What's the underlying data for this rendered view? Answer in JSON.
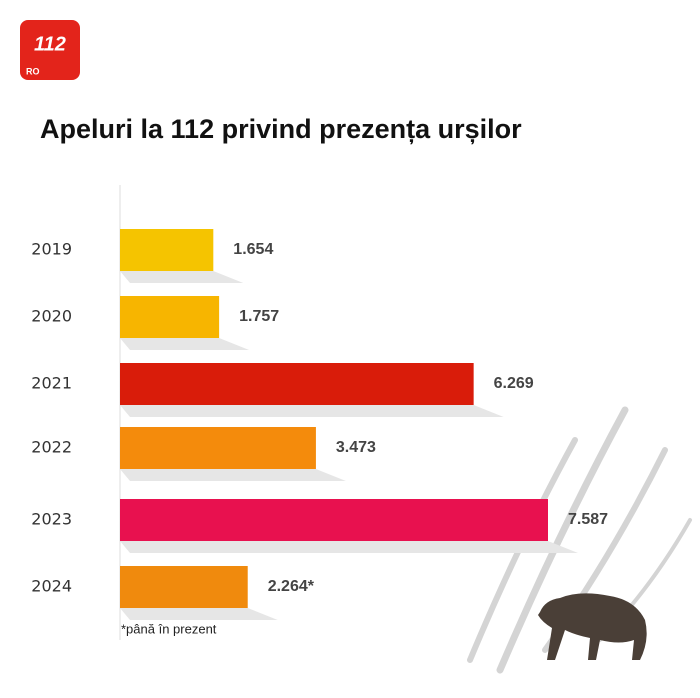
{
  "logo": {
    "number": "112",
    "country": "RO"
  },
  "chart_data": {
    "type": "bar",
    "orientation": "horizontal",
    "title": "Apeluri la 112 privind prezența urșilor",
    "categories": [
      "2019",
      "2020",
      "2021",
      "2022",
      "2023",
      "2024"
    ],
    "values": [
      1654,
      1757,
      6269,
      3473,
      7587,
      2264
    ],
    "value_labels": [
      "1.654",
      "1.757",
      "6.269",
      "3.473",
      "7.587",
      "2.264*"
    ],
    "colors": [
      "#f5c400",
      "#f7b500",
      "#d91c0a",
      "#f48b0c",
      "#e8114f",
      "#f08a0d"
    ],
    "note": "*până în prezent"
  }
}
